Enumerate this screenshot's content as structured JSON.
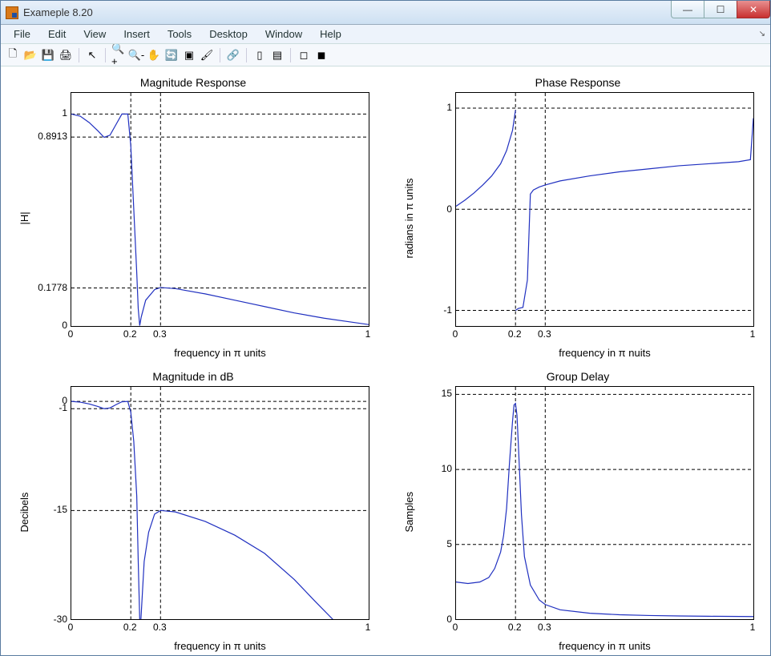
{
  "window": {
    "title": "Exameple 8.20"
  },
  "menus": [
    "File",
    "Edit",
    "View",
    "Insert",
    "Tools",
    "Desktop",
    "Window",
    "Help"
  ],
  "toolbar_icons": [
    {
      "name": "new-icon",
      "glyph": "🗋"
    },
    {
      "name": "open-icon",
      "glyph": "📂"
    },
    {
      "name": "save-icon",
      "glyph": "💾"
    },
    {
      "name": "print-icon",
      "glyph": "🖨"
    },
    {
      "name": "sep"
    },
    {
      "name": "pointer-icon",
      "glyph": "↖"
    },
    {
      "name": "sep"
    },
    {
      "name": "zoom-in-icon",
      "glyph": "🔍+"
    },
    {
      "name": "zoom-out-icon",
      "glyph": "🔍-"
    },
    {
      "name": "pan-icon",
      "glyph": "✋"
    },
    {
      "name": "rotate-icon",
      "glyph": "🔄"
    },
    {
      "name": "datacursor-icon",
      "glyph": "▣"
    },
    {
      "name": "brush-icon",
      "glyph": "🖌"
    },
    {
      "name": "sep"
    },
    {
      "name": "link-icon",
      "glyph": "🔗"
    },
    {
      "name": "sep"
    },
    {
      "name": "colorbar-icon",
      "glyph": "▯"
    },
    {
      "name": "legend-icon",
      "glyph": "▤"
    },
    {
      "name": "sep"
    },
    {
      "name": "hide-icon",
      "glyph": "◻"
    },
    {
      "name": "show-icon",
      "glyph": "◼"
    }
  ],
  "colors": {
    "line": "#2030c0",
    "axis": "#000000",
    "grid_dash": "4 3",
    "bg": "#ffffff"
  },
  "subplots": [
    {
      "key": "mag",
      "title": "Magnitude Response",
      "xlabel": "frequency in π units",
      "ylabel": "|H|",
      "xlim": [
        0,
        1
      ],
      "ylim": [
        0,
        1.1
      ],
      "xticks": [
        {
          "v": 0,
          "l": "0"
        },
        {
          "v": 0.2,
          "l": "0.2"
        },
        {
          "v": 0.3,
          "l": "0.3"
        },
        {
          "v": 1,
          "l": "1"
        }
      ],
      "yticks": [
        {
          "v": 0,
          "l": "0"
        },
        {
          "v": 0.1778,
          "l": "0.1778"
        },
        {
          "v": 0.8913,
          "l": "0.8913"
        },
        {
          "v": 1,
          "l": "1"
        }
      ],
      "vlines": [
        0.2,
        0.3
      ],
      "hlines": [
        0.1778,
        0.8913,
        1
      ],
      "series": [
        [
          0,
          1.0
        ],
        [
          0.03,
          0.99
        ],
        [
          0.06,
          0.96
        ],
        [
          0.09,
          0.92
        ],
        [
          0.11,
          0.89
        ],
        [
          0.13,
          0.9
        ],
        [
          0.15,
          0.95
        ],
        [
          0.17,
          1.0
        ],
        [
          0.19,
          1.0
        ],
        [
          0.2,
          0.85
        ],
        [
          0.21,
          0.55
        ],
        [
          0.22,
          0.25
        ],
        [
          0.225,
          0.08
        ],
        [
          0.23,
          0.0
        ],
        [
          0.235,
          0.04
        ],
        [
          0.25,
          0.12
        ],
        [
          0.28,
          0.17
        ],
        [
          0.3,
          0.18
        ],
        [
          0.35,
          0.175
        ],
        [
          0.45,
          0.15
        ],
        [
          0.55,
          0.12
        ],
        [
          0.65,
          0.09
        ],
        [
          0.75,
          0.06
        ],
        [
          0.85,
          0.035
        ],
        [
          0.95,
          0.015
        ],
        [
          1.0,
          0.005
        ]
      ]
    },
    {
      "key": "phase",
      "title": "Phase Response",
      "xlabel": "frequency in π nuits",
      "ylabel": "radians in π units",
      "xlim": [
        0,
        1
      ],
      "ylim": [
        -1.15,
        1.15
      ],
      "xticks": [
        {
          "v": 0,
          "l": "0"
        },
        {
          "v": 0.2,
          "l": "0.2"
        },
        {
          "v": 0.3,
          "l": "0.3"
        },
        {
          "v": 1,
          "l": "1"
        }
      ],
      "yticks": [
        {
          "v": -1,
          "l": "-1"
        },
        {
          "v": 0,
          "l": "0"
        },
        {
          "v": 1,
          "l": "1"
        }
      ],
      "vlines": [
        0.2,
        0.3
      ],
      "hlines": [
        -1,
        0,
        1
      ],
      "series_multi": [
        [
          [
            0,
            0.03
          ],
          [
            0.03,
            0.09
          ],
          [
            0.06,
            0.16
          ],
          [
            0.09,
            0.24
          ],
          [
            0.12,
            0.33
          ],
          [
            0.15,
            0.45
          ],
          [
            0.17,
            0.58
          ],
          [
            0.19,
            0.78
          ],
          [
            0.2,
            0.98
          ]
        ],
        [
          [
            0.2,
            -1.0
          ],
          [
            0.21,
            -0.98
          ],
          [
            0.225,
            -0.97
          ],
          [
            0.24,
            -0.7
          ],
          [
            0.25,
            0.15
          ],
          [
            0.26,
            0.19
          ],
          [
            0.28,
            0.22
          ],
          [
            0.3,
            0.24
          ],
          [
            0.35,
            0.28
          ],
          [
            0.45,
            0.33
          ],
          [
            0.55,
            0.37
          ],
          [
            0.65,
            0.4
          ],
          [
            0.75,
            0.43
          ],
          [
            0.85,
            0.45
          ],
          [
            0.95,
            0.47
          ],
          [
            0.99,
            0.49
          ],
          [
            1.0,
            0.9
          ]
        ]
      ]
    },
    {
      "key": "magdb",
      "title": "Magnitude in dB",
      "xlabel": "frequency in π units",
      "ylabel": "Decibels",
      "xlim": [
        0,
        1
      ],
      "ylim": [
        -30,
        2
      ],
      "xticks": [
        {
          "v": 0,
          "l": "0"
        },
        {
          "v": 0.2,
          "l": "0.2"
        },
        {
          "v": 0.3,
          "l": "0.3"
        },
        {
          "v": 1,
          "l": "1"
        }
      ],
      "yticks": [
        {
          "v": -30,
          "l": "-30"
        },
        {
          "v": -15,
          "l": "-15"
        },
        {
          "v": -1,
          "l": "-1"
        },
        {
          "v": 0,
          "l": "0"
        }
      ],
      "vlines": [
        0.2,
        0.3
      ],
      "hlines": [
        -15,
        -1,
        0
      ],
      "series": [
        [
          0,
          0.0
        ],
        [
          0.03,
          -0.1
        ],
        [
          0.06,
          -0.35
        ],
        [
          0.09,
          -0.7
        ],
        [
          0.11,
          -1.0
        ],
        [
          0.13,
          -0.9
        ],
        [
          0.15,
          -0.45
        ],
        [
          0.17,
          -0.05
        ],
        [
          0.19,
          0.0
        ],
        [
          0.2,
          -1.5
        ],
        [
          0.21,
          -5.5
        ],
        [
          0.22,
          -13
        ],
        [
          0.225,
          -22
        ],
        [
          0.23,
          -30
        ],
        [
          0.234,
          -30
        ],
        [
          0.245,
          -22
        ],
        [
          0.26,
          -18
        ],
        [
          0.28,
          -15.5
        ],
        [
          0.3,
          -15.0
        ],
        [
          0.35,
          -15.2
        ],
        [
          0.45,
          -16.5
        ],
        [
          0.55,
          -18.4
        ],
        [
          0.65,
          -20.9
        ],
        [
          0.75,
          -24.5
        ],
        [
          0.82,
          -27.5
        ],
        [
          0.88,
          -30
        ]
      ]
    },
    {
      "key": "gd",
      "title": "Group Delay",
      "xlabel": "frequency in π units",
      "ylabel": "Samples",
      "xlim": [
        0,
        1
      ],
      "ylim": [
        0,
        15.5
      ],
      "xticks": [
        {
          "v": 0,
          "l": "0"
        },
        {
          "v": 0.2,
          "l": "0.2"
        },
        {
          "v": 0.3,
          "l": "0.3"
        },
        {
          "v": 1,
          "l": "1"
        }
      ],
      "yticks": [
        {
          "v": 0,
          "l": "0"
        },
        {
          "v": 5,
          "l": "5"
        },
        {
          "v": 10,
          "l": "10"
        },
        {
          "v": 15,
          "l": "15"
        }
      ],
      "vlines": [
        0.2,
        0.3
      ],
      "hlines": [
        5,
        10,
        15
      ],
      "series": [
        [
          0,
          2.5
        ],
        [
          0.04,
          2.4
        ],
        [
          0.08,
          2.5
        ],
        [
          0.11,
          2.8
        ],
        [
          0.13,
          3.4
        ],
        [
          0.15,
          4.5
        ],
        [
          0.16,
          5.6
        ],
        [
          0.17,
          7.4
        ],
        [
          0.18,
          10.5
        ],
        [
          0.19,
          13.2
        ],
        [
          0.195,
          14.3
        ],
        [
          0.2,
          14.4
        ],
        [
          0.205,
          13.6
        ],
        [
          0.21,
          11.5
        ],
        [
          0.22,
          7.0
        ],
        [
          0.23,
          4.2
        ],
        [
          0.25,
          2.3
        ],
        [
          0.28,
          1.3
        ],
        [
          0.3,
          1.0
        ],
        [
          0.35,
          0.65
        ],
        [
          0.45,
          0.42
        ],
        [
          0.55,
          0.32
        ],
        [
          0.65,
          0.27
        ],
        [
          0.75,
          0.24
        ],
        [
          0.85,
          0.22
        ],
        [
          1.0,
          0.2
        ]
      ]
    }
  ]
}
